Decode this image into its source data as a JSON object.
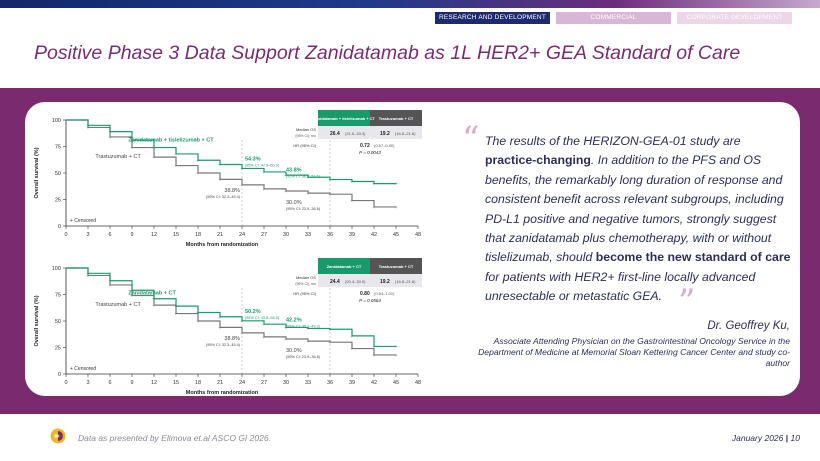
{
  "nav": {
    "tabs": [
      {
        "label": "RESEARCH AND DEVELOPMENT",
        "active": true
      },
      {
        "label": "COMMERCIAL",
        "active": false
      },
      {
        "label": "CORPORATE DEVELOPMENT",
        "active": false
      }
    ]
  },
  "title": "Positive Phase 3 Data Support Zanidatamab as 1L HER2+ GEA Standard of Care",
  "colors": {
    "brand": "#7a2a6e",
    "navy": "#1e2a6e",
    "zani_series": "#1a9a6a",
    "tras_series": "#777777"
  },
  "charts": [
    {
      "ylabel": "Overall survival (%)",
      "xlabel": "Months from randomization",
      "yticks": [
        "0",
        "25",
        "50",
        "75",
        "100"
      ],
      "xticks": [
        "0",
        "3",
        "6",
        "9",
        "12",
        "15",
        "18",
        "21",
        "24",
        "27",
        "30",
        "33",
        "36",
        "39",
        "42",
        "45",
        "48"
      ],
      "censored_label": "+ Censored",
      "series_zani_label": "Zanidatamab + tislelizumab + CT",
      "series_tras_label": "Trastuzumab + CT",
      "ann_zani_24_value": "54.3%",
      "ann_zani_24_ci": "(95% CI: 47.9–60.3)",
      "ann_tras_24_value": "38.8%",
      "ann_tras_24_ci": "(95% CI: 32.3–45.4)",
      "ann_zani_36_value": "43.8%",
      "ann_zani_36_ci": "(95% CI: 36.8–50.6)",
      "ann_tras_36_value": "30.0%",
      "ann_tras_36_ci": "(95% CI: 23.9–36.8)",
      "table": {
        "col1": "Zanidatamab + tislelizumab + CT",
        "col2": "Trastuzumab + CT",
        "row1_label": "Median OS",
        "row1_sub": "(95% CI), mo",
        "row1_val1": "26.4",
        "row1_val1_ci": "(21.5–33.3)",
        "row1_val2": "19.2",
        "row1_val2_ci": "(16.8–21.8)",
        "row2_label": "HR (95% CI)",
        "hr": "0.72",
        "hr_ci": "(0.57–0.90)",
        "p": "P = 0.0043"
      }
    },
    {
      "ylabel": "Overall survival (%)",
      "xlabel": "Months from randomization",
      "yticks": [
        "0",
        "25",
        "50",
        "75",
        "100"
      ],
      "xticks": [
        "0",
        "3",
        "6",
        "9",
        "12",
        "15",
        "18",
        "21",
        "24",
        "27",
        "30",
        "33",
        "36",
        "39",
        "42",
        "45",
        "48"
      ],
      "censored_label": "+ Censored",
      "series_zani_label": "Zanidatamab + CT",
      "series_tras_label": "Trastuzumab + CT",
      "ann_zani_24_value": "50.2%",
      "ann_zani_24_ci": "(95% CI: 43.8–56.3)",
      "ann_tras_24_value": "38.8%",
      "ann_tras_24_ci": "(95% CI: 32.3–45.4)",
      "ann_zani_36_value": "42.2%",
      "ann_zani_36_ci": "(95% CI: 35.1–49.2)",
      "ann_tras_36_value": "30.0%",
      "ann_tras_36_ci": "(95% CI: 23.9–36.8)",
      "table": {
        "col1": "Zanidatamab + CT",
        "col2": "Trastuzumab + CT",
        "row1_label": "Median OS",
        "row1_sub": "(95% CI), mo",
        "row1_val1": "24.4",
        "row1_val1_ci": "(20.4–30.0)",
        "row1_val2": "19.2",
        "row1_val2_ci": "(16.8–21.8)",
        "row2_label": "HR (95% CI)",
        "hr": "0.80",
        "hr_ci": "(0.64–1.01)",
        "p": "P = 0.0564"
      }
    }
  ],
  "chart_data": [
    {
      "type": "line",
      "title": "",
      "xlabel": "Months from randomization",
      "ylabel": "Overall survival (%)",
      "xlim": [
        0,
        48
      ],
      "ylim": [
        0,
        100
      ],
      "series": [
        {
          "name": "Zanidatamab + tislelizumab + CT",
          "x": [
            0,
            3,
            6,
            9,
            12,
            15,
            18,
            21,
            24,
            27,
            30,
            33,
            36,
            39,
            42,
            45
          ],
          "values": [
            100,
            95,
            89,
            81,
            74,
            68,
            62,
            58,
            54.3,
            51,
            48,
            46,
            43.8,
            42,
            40,
            40
          ]
        },
        {
          "name": "Trastuzumab + CT",
          "x": [
            0,
            3,
            6,
            9,
            12,
            15,
            18,
            21,
            24,
            27,
            30,
            33,
            36,
            39,
            42,
            45
          ],
          "values": [
            100,
            93,
            84,
            74,
            65,
            57,
            50,
            44,
            38.8,
            35,
            33,
            31,
            30,
            24,
            18,
            18
          ]
        }
      ]
    },
    {
      "type": "line",
      "title": "",
      "xlabel": "Months from randomization",
      "ylabel": "Overall survival (%)",
      "xlim": [
        0,
        48
      ],
      "ylim": [
        0,
        100
      ],
      "series": [
        {
          "name": "Zanidatamab + CT",
          "x": [
            0,
            3,
            6,
            9,
            12,
            15,
            18,
            21,
            24,
            27,
            30,
            33,
            36,
            39,
            42,
            45
          ],
          "values": [
            100,
            95,
            88,
            79,
            71,
            64,
            58,
            54,
            50.2,
            47,
            44,
            43,
            42.2,
            36,
            26,
            26
          ]
        },
        {
          "name": "Trastuzumab + CT",
          "x": [
            0,
            3,
            6,
            9,
            12,
            15,
            18,
            21,
            24,
            27,
            30,
            33,
            36,
            39,
            42,
            45
          ],
          "values": [
            100,
            93,
            84,
            74,
            65,
            57,
            50,
            44,
            38.8,
            35,
            33,
            31,
            30,
            24,
            18,
            18
          ]
        }
      ]
    }
  ],
  "quote": {
    "p1": "The results of the HERIZON-GEA-01 study are ",
    "b1": "practice-changing",
    "p2": ". In addition to the PFS and OS benefits, the remarkably long duration of response and consistent benefit across relevant subgroups, including PD-L1 positive and negative tumors, strongly suggest that zanidatamab plus chemotherapy, with or without tislelizumab, should ",
    "b2": "become the new standard of care",
    "p3": " for patients with HER2+ first-line locally advanced unresectable or metastatic GEA.",
    "open_mark": "“",
    "close_mark": "”"
  },
  "author": {
    "name": "Dr. Geoffrey Ku,",
    "affiliation": "Associate Attending Physician on the Gastrointestinal Oncology Service in the Department of Medicine at Memorial Sloan Kettering Cancer Center and study co-author"
  },
  "footer": {
    "note": "Data as presented by Elimova et.al ASCO GI 2026.",
    "date": "January 2026",
    "separator": "|",
    "page": "10"
  }
}
